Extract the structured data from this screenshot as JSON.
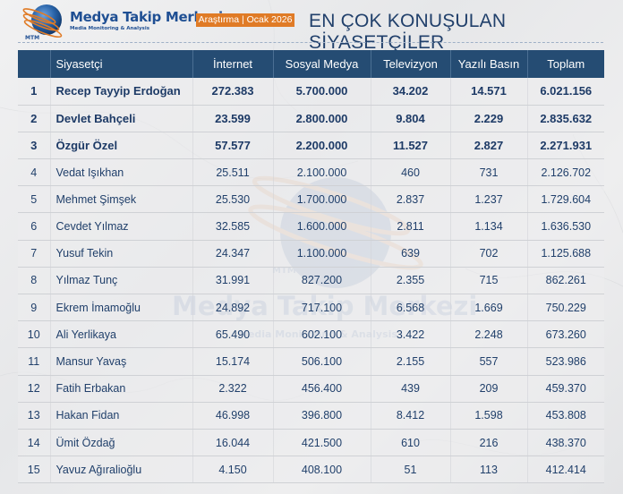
{
  "header": {
    "brand_title": "Medya Takip Merkezi",
    "brand_subtitle": "Media Monitoring & Analysis",
    "brand_logo_mark": "MTM",
    "tag": "Araştırma | Ocak 2026",
    "title": "EN ÇOK KONUŞULAN SİYASETÇİLER"
  },
  "colors": {
    "header_bg": "#254c73",
    "accent_orange": "#e07b26",
    "text_navy": "#21406b",
    "brand_blue": "#1f4f93"
  },
  "table": {
    "columns": [
      "",
      "Siyasetçi",
      "İnternet",
      "Sosyal Medya",
      "Televizyon",
      "Yazılı Basın",
      "Toplam"
    ],
    "rows": [
      {
        "rank": "1",
        "name": "Recep Tayyip Erdoğan",
        "internet": "272.383",
        "social": "5.700.000",
        "tv": "34.202",
        "print": "14.571",
        "total": "6.021.156"
      },
      {
        "rank": "2",
        "name": "Devlet Bahçeli",
        "internet": "23.599",
        "social": "2.800.000",
        "tv": "9.804",
        "print": "2.229",
        "total": "2.835.632"
      },
      {
        "rank": "3",
        "name": "Özgür Özel",
        "internet": "57.577",
        "social": "2.200.000",
        "tv": "11.527",
        "print": "2.827",
        "total": "2.271.931"
      },
      {
        "rank": "4",
        "name": "Vedat Işıkhan",
        "internet": "25.511",
        "social": "2.100.000",
        "tv": "460",
        "print": "731",
        "total": "2.126.702"
      },
      {
        "rank": "5",
        "name": "Mehmet Şimşek",
        "internet": "25.530",
        "social": "1.700.000",
        "tv": "2.837",
        "print": "1.237",
        "total": "1.729.604"
      },
      {
        "rank": "6",
        "name": "Cevdet Yılmaz",
        "internet": "32.585",
        "social": "1.600.000",
        "tv": "2.811",
        "print": "1.134",
        "total": "1.636.530"
      },
      {
        "rank": "7",
        "name": "Yusuf Tekin",
        "internet": "24.347",
        "social": "1.100.000",
        "tv": "639",
        "print": "702",
        "total": "1.125.688"
      },
      {
        "rank": "8",
        "name": "Yılmaz Tunç",
        "internet": "31.991",
        "social": "827.200",
        "tv": "2.355",
        "print": "715",
        "total": "862.261"
      },
      {
        "rank": "9",
        "name": "Ekrem İmamoğlu",
        "internet": "24.892",
        "social": "717.100",
        "tv": "6.568",
        "print": "1.669",
        "total": "750.229"
      },
      {
        "rank": "10",
        "name": "Ali Yerlikaya",
        "internet": "65.490",
        "social": "602.100",
        "tv": "3.422",
        "print": "2.248",
        "total": "673.260"
      },
      {
        "rank": "11",
        "name": "Mansur Yavaş",
        "internet": "15.174",
        "social": "506.100",
        "tv": "2.155",
        "print": "557",
        "total": "523.986"
      },
      {
        "rank": "12",
        "name": "Fatih Erbakan",
        "internet": "2.322",
        "social": "456.400",
        "tv": "439",
        "print": "209",
        "total": "459.370"
      },
      {
        "rank": "13",
        "name": "Hakan Fidan",
        "internet": "46.998",
        "social": "396.800",
        "tv": "8.412",
        "print": "1.598",
        "total": "453.808"
      },
      {
        "rank": "14",
        "name": "Ümit Özdağ",
        "internet": "16.044",
        "social": "421.500",
        "tv": "610",
        "print": "216",
        "total": "438.370"
      },
      {
        "rank": "15",
        "name": "Yavuz Ağıralioğlu",
        "internet": "4.150",
        "social": "408.100",
        "tv": "51",
        "print": "113",
        "total": "412.414"
      }
    ]
  },
  "watermark": {
    "mark": "MTM",
    "title": "Medya Takip Merkezi",
    "subtitle": "Media Monitoring & Analysis"
  }
}
